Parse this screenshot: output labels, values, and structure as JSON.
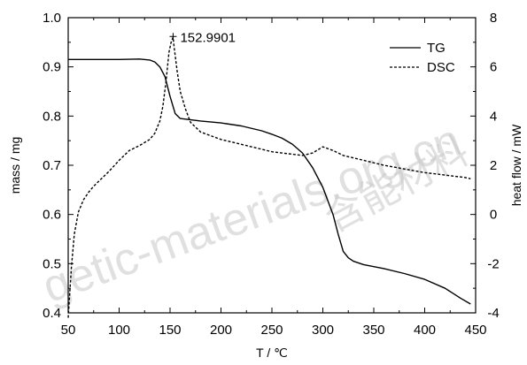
{
  "chart_data": {
    "type": "line",
    "xlabel": "T / ℃",
    "ylabel_left": "mass / mg",
    "ylabel_right": "heat flow / mW",
    "xlim": [
      50,
      450
    ],
    "ylim_left": [
      0.4,
      1.0
    ],
    "ylim_right": [
      -4,
      8
    ],
    "x_ticks": [
      "50",
      "100",
      "150",
      "200",
      "250",
      "300",
      "350",
      "400",
      "450"
    ],
    "y_left_ticks": [
      "0.4",
      "0.5",
      "0.6",
      "0.7",
      "0.8",
      "0.9",
      "1.0"
    ],
    "y_right_ticks": [
      "-4",
      "-2",
      "0",
      "2",
      "4",
      "6",
      "8"
    ],
    "legend_position": "top-right",
    "grid": false,
    "series": [
      {
        "name": "TG",
        "axis": "left",
        "style": "solid",
        "x": [
          50,
          100,
          120,
          130,
          135,
          140,
          145,
          150,
          155,
          160,
          180,
          200,
          220,
          240,
          250,
          260,
          270,
          280,
          290,
          300,
          310,
          315,
          320,
          325,
          330,
          340,
          360,
          380,
          400,
          420,
          435,
          445
        ],
        "y": [
          0.915,
          0.915,
          0.916,
          0.914,
          0.91,
          0.9,
          0.88,
          0.84,
          0.805,
          0.795,
          0.79,
          0.786,
          0.78,
          0.77,
          0.763,
          0.755,
          0.743,
          0.725,
          0.695,
          0.655,
          0.6,
          0.56,
          0.525,
          0.512,
          0.505,
          0.498,
          0.49,
          0.48,
          0.468,
          0.45,
          0.43,
          0.418
        ]
      },
      {
        "name": "DSC",
        "axis": "right",
        "style": "dashed",
        "x": [
          50,
          53,
          56,
          60,
          65,
          70,
          75,
          80,
          90,
          100,
          110,
          120,
          130,
          135,
          140,
          143,
          146,
          149,
          151,
          152.99,
          154,
          157,
          160,
          165,
          170,
          180,
          200,
          220,
          250,
          270,
          280,
          290,
          300,
          310,
          320,
          340,
          360,
          380,
          400,
          420,
          440,
          445
        ],
        "y": [
          -4.2,
          -2.2,
          -0.8,
          0.1,
          0.6,
          0.9,
          1.15,
          1.35,
          1.75,
          2.2,
          2.6,
          2.8,
          3.05,
          3.3,
          3.8,
          4.4,
          5.4,
          6.6,
          7.0,
          7.2,
          6.8,
          5.8,
          5.0,
          4.3,
          3.75,
          3.35,
          3.05,
          2.85,
          2.55,
          2.45,
          2.4,
          2.5,
          2.75,
          2.6,
          2.4,
          2.2,
          2.0,
          1.85,
          1.7,
          1.6,
          1.5,
          1.45
        ]
      }
    ],
    "annotations": [
      {
        "text": "152.9901",
        "x": 152.99,
        "y": 7.2,
        "axis": "right"
      }
    ]
  },
  "watermark": {
    "latin": "getic-materials.org.cn",
    "cjk": "含能材料"
  }
}
